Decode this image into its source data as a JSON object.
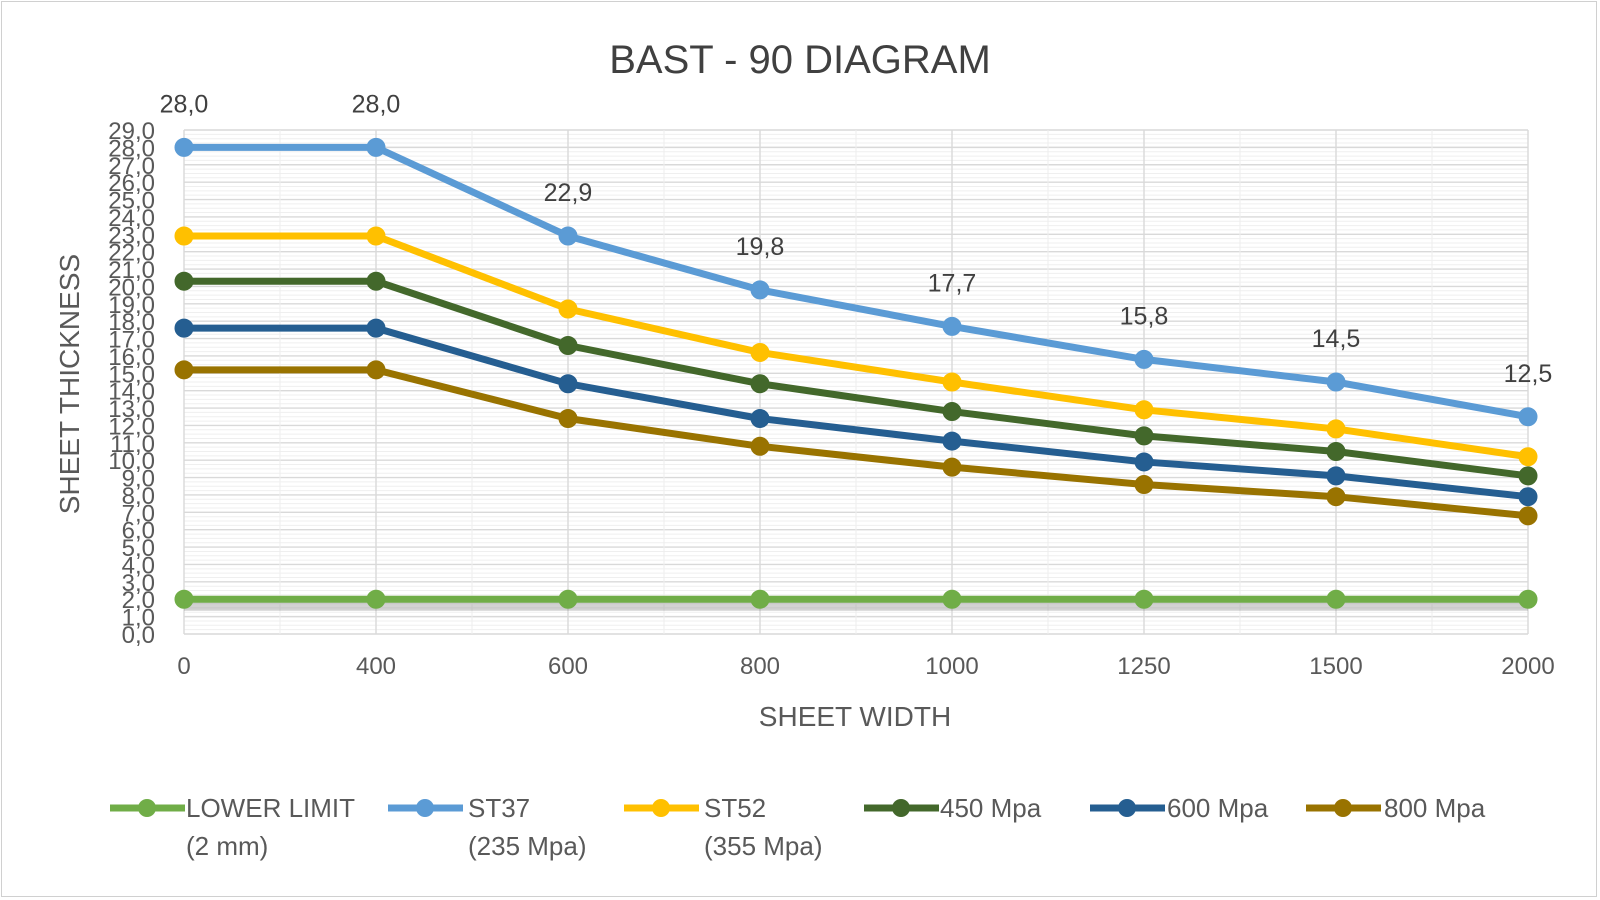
{
  "chart_data": {
    "type": "line",
    "title": "BAST - 90 DIAGRAM",
    "xlabel": "SHEET WIDTH",
    "ylabel": "SHEET THICKNESS",
    "categories": [
      "0",
      "400",
      "600",
      "800",
      "1000",
      "1250",
      "1500",
      "2000"
    ],
    "ylim": [
      0,
      29
    ],
    "ytick_step": 1,
    "grid": true,
    "legend_position": "bottom",
    "series": [
      {
        "name": "LOWER LIMIT (2 mm)",
        "color": "#70AD47",
        "values": [
          2,
          2,
          2,
          2,
          2,
          2,
          2,
          2
        ],
        "data_labels": false
      },
      {
        "name": "ST37 (235 Mpa)",
        "color": "#5B9BD5",
        "values": [
          28.0,
          28.0,
          22.9,
          19.8,
          17.7,
          15.8,
          14.5,
          12.5
        ],
        "data_labels": true
      },
      {
        "name": "ST52 (355 Mpa)",
        "color": "#FFC000",
        "values": [
          22.9,
          22.9,
          18.7,
          16.2,
          14.5,
          12.9,
          11.8,
          10.2
        ],
        "data_labels": false
      },
      {
        "name": "450  Mpa",
        "color": "#43682B",
        "values": [
          20.3,
          20.3,
          16.6,
          14.4,
          12.8,
          11.4,
          10.5,
          9.1
        ],
        "data_labels": false
      },
      {
        "name": "600 Mpa",
        "color": "#255E91",
        "values": [
          17.6,
          17.6,
          14.4,
          12.4,
          11.1,
          9.9,
          9.1,
          7.9
        ],
        "data_labels": false
      },
      {
        "name": "800 Mpa",
        "color": "#997300",
        "values": [
          15.2,
          15.2,
          12.4,
          10.8,
          9.6,
          8.6,
          7.9,
          6.8
        ],
        "data_labels": false
      }
    ],
    "legend": [
      {
        "line1": "LOWER LIMIT",
        "line2": "(2 mm)"
      },
      {
        "line1": "ST37",
        "line2": "(235 Mpa)"
      },
      {
        "line1": "ST52",
        "line2": "(355 Mpa)"
      },
      {
        "line1": "450  Mpa",
        "line2": ""
      },
      {
        "line1": "600 Mpa",
        "line2": ""
      },
      {
        "line1": "800 Mpa",
        "line2": ""
      }
    ]
  }
}
